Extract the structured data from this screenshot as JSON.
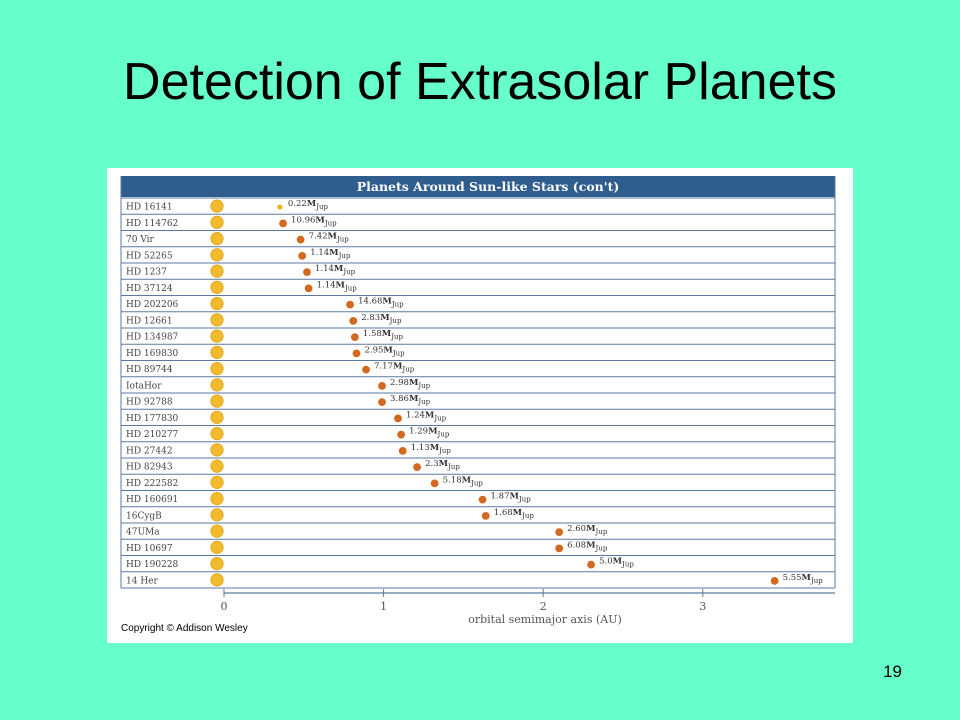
{
  "slide": {
    "title": "Detection of Extrasolar Planets",
    "number": "19"
  },
  "figure": {
    "copyright": "Copyright © Addison Wesley"
  },
  "colors": {
    "background": "#66ffcc",
    "header": "#2e5d8e",
    "grid": "#5b7aa3",
    "star": "#f2bb2d",
    "planet": "#d2691e",
    "small_planet": "#f0b000"
  },
  "chart_data": {
    "type": "scatter",
    "title": "Planets Around Sun-like Stars (con't)",
    "xlabel": "orbital semimajor axis (AU)",
    "ylabel": "",
    "xlim": [
      0,
      3.5
    ],
    "xticks": [
      "0",
      "1",
      "2",
      "3"
    ],
    "mass_unit": "M",
    "mass_subscript": "Jup",
    "stars": [
      {
        "name": "HD 16141",
        "a": 0.35,
        "mass": "0.22"
      },
      {
        "name": "HD 114762",
        "a": 0.37,
        "mass": "10.96"
      },
      {
        "name": "70 Vir",
        "a": 0.48,
        "mass": "7.42"
      },
      {
        "name": "HD 52265",
        "a": 0.49,
        "mass": "1.14"
      },
      {
        "name": "HD 1237",
        "a": 0.52,
        "mass": "1.14"
      },
      {
        "name": "HD 37124",
        "a": 0.53,
        "mass": "1.14"
      },
      {
        "name": "HD 202206",
        "a": 0.79,
        "mass": "14.68"
      },
      {
        "name": "HD 12661",
        "a": 0.81,
        "mass": "2.83"
      },
      {
        "name": "HD 134987",
        "a": 0.82,
        "mass": "1.58"
      },
      {
        "name": "HD 169830",
        "a": 0.83,
        "mass": "2.95"
      },
      {
        "name": "HD 89744",
        "a": 0.89,
        "mass": "7.17"
      },
      {
        "name": "IotaHor",
        "a": 0.99,
        "mass": "2.98"
      },
      {
        "name": "HD 92788",
        "a": 0.99,
        "mass": "3.86"
      },
      {
        "name": "HD 177830",
        "a": 1.09,
        "mass": "1.24"
      },
      {
        "name": "HD 210277",
        "a": 1.11,
        "mass": "1.29"
      },
      {
        "name": "HD 27442",
        "a": 1.12,
        "mass": "1.13"
      },
      {
        "name": "HD 82943",
        "a": 1.21,
        "mass": "2.3"
      },
      {
        "name": "HD 222582",
        "a": 1.32,
        "mass": "5.18"
      },
      {
        "name": "HD 160691",
        "a": 1.62,
        "mass": "1.87"
      },
      {
        "name": "16CygB",
        "a": 1.64,
        "mass": "1.68"
      },
      {
        "name": "47UMa",
        "a": 2.1,
        "mass": "2.60"
      },
      {
        "name": "HD 10697",
        "a": 2.1,
        "mass": "6.08"
      },
      {
        "name": "HD 190228",
        "a": 2.3,
        "mass": "5.0"
      },
      {
        "name": "14 Her",
        "a": 3.45,
        "mass": "5.55"
      }
    ]
  }
}
